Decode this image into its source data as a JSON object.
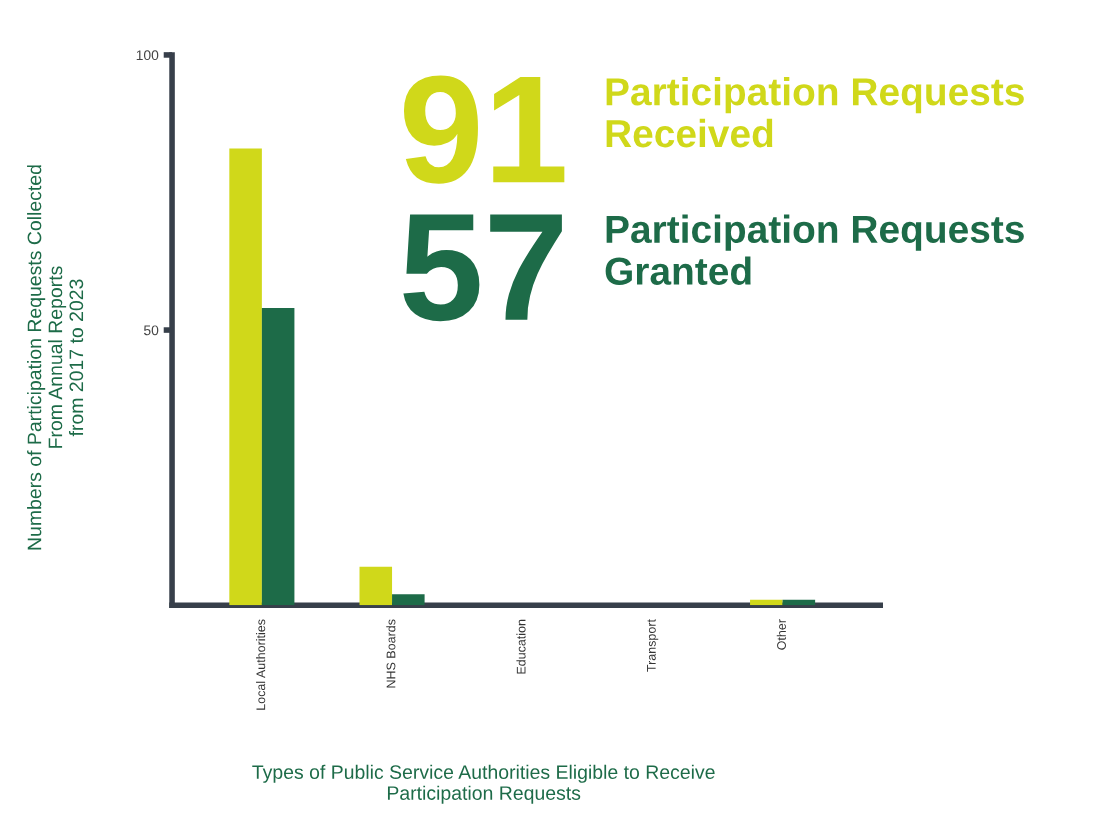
{
  "chart_data": {
    "type": "bar",
    "categories": [
      "Local Authorities",
      "NHS Boards",
      "Education",
      "Transport",
      "Other"
    ],
    "series": [
      {
        "name": "Participation Requests Received",
        "color": "#d0d81a",
        "values": [
          83,
          7,
          0,
          0,
          1
        ]
      },
      {
        "name": "Participation Requests Granted",
        "color": "#1d6b48",
        "values": [
          54,
          2,
          0,
          0,
          1
        ]
      }
    ],
    "annotations": [
      "91",
      "57"
    ],
    "legend": "top right",
    "xlabel": "Types of Public Service Authorities Eligible to Receive\nParticipation Requests",
    "ylabel": "Numbers of Participation Requests Collected\nFrom Annual Reports\nfrom 2017 to 2023",
    "ylim": [
      0,
      100
    ],
    "yticks": [
      50,
      100
    ],
    "grid": false
  }
}
